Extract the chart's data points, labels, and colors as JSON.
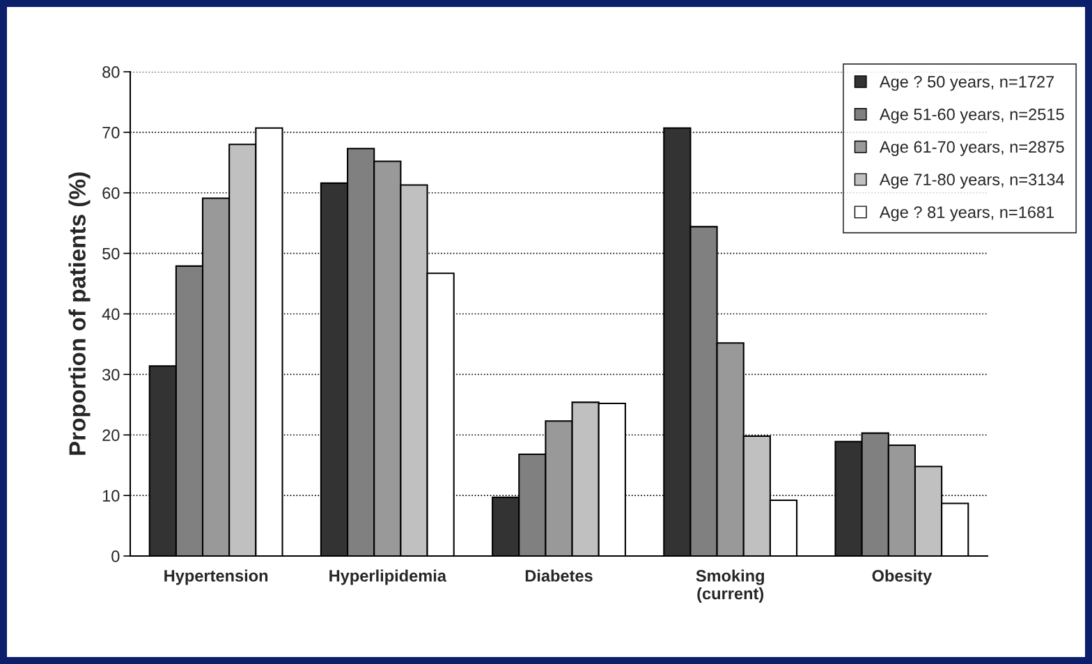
{
  "chart_data": {
    "type": "bar",
    "ylabel": "Proportion of patients (%)",
    "categories": [
      "Hypertension",
      "Hyperlipidemia",
      "Diabetes",
      "Smoking\n(current)",
      "Obesity"
    ],
    "series": [
      {
        "name": "Age ? 50 years, n=1727",
        "color": "#333333",
        "values": [
          31.4,
          61.6,
          9.7,
          70.7,
          18.9
        ]
      },
      {
        "name": "Age 51-60 years, n=2515",
        "color": "#808080",
        "values": [
          47.9,
          67.3,
          16.8,
          54.4,
          20.3
        ]
      },
      {
        "name": "Age 61-70 years, n=2875",
        "color": "#999999",
        "values": [
          59.1,
          65.2,
          22.3,
          35.2,
          18.3
        ]
      },
      {
        "name": "Age 71-80 years, n=3134",
        "color": "#c0c0c0",
        "values": [
          68.0,
          61.3,
          25.4,
          19.8,
          14.8
        ]
      },
      {
        "name": "Age ? 81 years, n=1681",
        "color": "#ffffff",
        "values": [
          70.7,
          46.7,
          25.2,
          9.2,
          8.7
        ]
      }
    ],
    "ylim": [
      0,
      80
    ],
    "yticks": [
      0,
      10,
      20,
      30,
      40,
      50,
      60,
      70,
      80
    ],
    "grid": "y",
    "legend": "top right"
  }
}
